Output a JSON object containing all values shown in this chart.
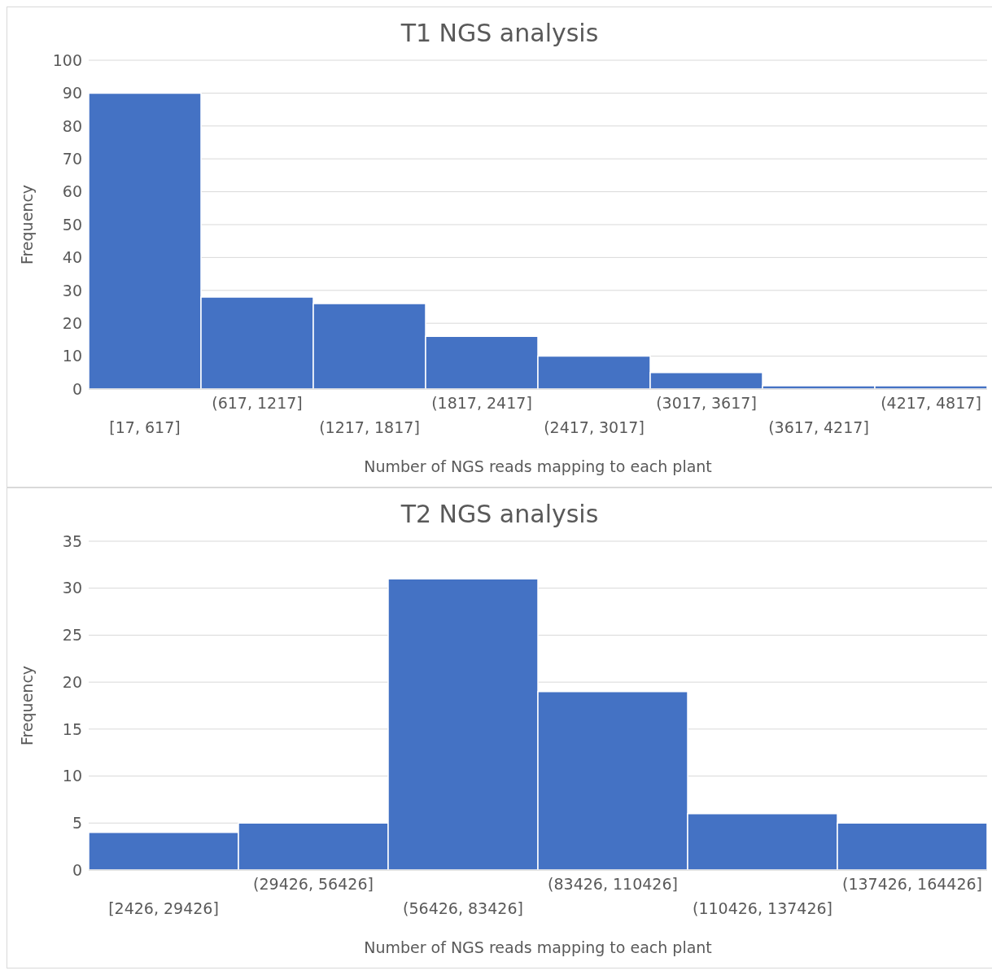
{
  "chart_data": [
    {
      "type": "bar",
      "title": "T1 NGS analysis",
      "xlabel": "Number of NGS reads mapping to each plant",
      "ylabel": "Frequency",
      "categories": [
        "[17, 617]",
        "(617, 1217]",
        "(1217, 1817]",
        "(1817, 2417]",
        "(2417, 3017]",
        "(3017, 3617]",
        "(3617, 4217]",
        "(4217, 4817]"
      ],
      "values": [
        90,
        28,
        26,
        16,
        10,
        5,
        1,
        1
      ],
      "color": "#4472c4",
      "ylim": [
        0,
        100
      ],
      "yticks": [
        0,
        10,
        20,
        30,
        40,
        50,
        60,
        70,
        80,
        90,
        100
      ],
      "grid": "y"
    },
    {
      "type": "bar",
      "title": "T2 NGS analysis",
      "xlabel": "Number of NGS reads mapping to each plant",
      "ylabel": "Frequency",
      "categories": [
        "[2426, 29426]",
        "(29426, 56426]",
        "(56426, 83426]",
        "(83426, 110426]",
        "(110426, 137426]",
        "(137426, 164426]"
      ],
      "values": [
        4,
        5,
        31,
        19,
        6,
        5
      ],
      "color": "#4472c4",
      "ylim": [
        0,
        35
      ],
      "yticks": [
        0,
        5,
        10,
        15,
        20,
        25,
        30,
        35
      ],
      "grid": "y"
    }
  ]
}
